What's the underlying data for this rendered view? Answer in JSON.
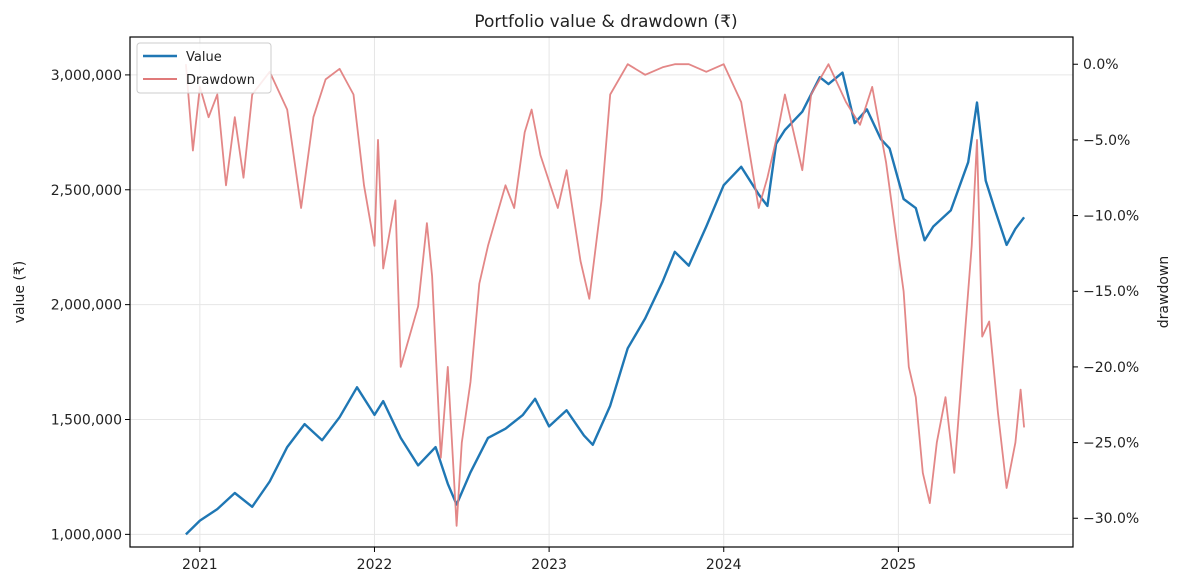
{
  "chart_data": {
    "type": "line",
    "title": "Portfolio value & drawdown (₹)",
    "xlabel": "",
    "ylabel_left": "value (₹)",
    "ylabel_right": "drawdown",
    "x_ticks": [
      "2021",
      "2022",
      "2023",
      "2024",
      "2025"
    ],
    "y_left_ticks": [
      "1,000,000",
      "1,500,000",
      "2,000,000",
      "2,500,000",
      "3,000,000"
    ],
    "y_right_ticks": [
      "0.0%",
      "−5.0%",
      "−10.0%",
      "−15.0%",
      "−20.0%",
      "−25.0%",
      "−30.0%"
    ],
    "ylim_left": [
      945000,
      3165000
    ],
    "ylim_right": [
      -31.9,
      1.8
    ],
    "xlim": [
      2020.6,
      2026.0
    ],
    "grid": true,
    "legend_position": "top-left",
    "series": [
      {
        "name": "Value",
        "axis": "left",
        "color": "#1f77b4",
        "points": [
          [
            2020.92,
            1000000
          ],
          [
            2021.0,
            1060000
          ],
          [
            2021.1,
            1110000
          ],
          [
            2021.2,
            1180000
          ],
          [
            2021.3,
            1120000
          ],
          [
            2021.4,
            1230000
          ],
          [
            2021.5,
            1380000
          ],
          [
            2021.6,
            1480000
          ],
          [
            2021.7,
            1410000
          ],
          [
            2021.8,
            1510000
          ],
          [
            2021.9,
            1640000
          ],
          [
            2022.0,
            1520000
          ],
          [
            2022.05,
            1580000
          ],
          [
            2022.15,
            1420000
          ],
          [
            2022.25,
            1300000
          ],
          [
            2022.35,
            1380000
          ],
          [
            2022.42,
            1220000
          ],
          [
            2022.47,
            1130000
          ],
          [
            2022.55,
            1270000
          ],
          [
            2022.65,
            1420000
          ],
          [
            2022.75,
            1460000
          ],
          [
            2022.85,
            1520000
          ],
          [
            2022.92,
            1590000
          ],
          [
            2023.0,
            1470000
          ],
          [
            2023.1,
            1540000
          ],
          [
            2023.2,
            1430000
          ],
          [
            2023.25,
            1390000
          ],
          [
            2023.35,
            1560000
          ],
          [
            2023.45,
            1810000
          ],
          [
            2023.55,
            1940000
          ],
          [
            2023.65,
            2100000
          ],
          [
            2023.72,
            2230000
          ],
          [
            2023.8,
            2170000
          ],
          [
            2023.9,
            2340000
          ],
          [
            2024.0,
            2520000
          ],
          [
            2024.1,
            2600000
          ],
          [
            2024.2,
            2480000
          ],
          [
            2024.25,
            2430000
          ],
          [
            2024.3,
            2700000
          ],
          [
            2024.35,
            2760000
          ],
          [
            2024.45,
            2840000
          ],
          [
            2024.55,
            2990000
          ],
          [
            2024.6,
            2960000
          ],
          [
            2024.68,
            3010000
          ],
          [
            2024.75,
            2790000
          ],
          [
            2024.82,
            2850000
          ],
          [
            2024.9,
            2720000
          ],
          [
            2024.95,
            2680000
          ],
          [
            2025.03,
            2460000
          ],
          [
            2025.1,
            2420000
          ],
          [
            2025.15,
            2280000
          ],
          [
            2025.2,
            2340000
          ],
          [
            2025.3,
            2410000
          ],
          [
            2025.4,
            2620000
          ],
          [
            2025.45,
            2880000
          ],
          [
            2025.5,
            2540000
          ],
          [
            2025.55,
            2420000
          ],
          [
            2025.62,
            2260000
          ],
          [
            2025.67,
            2330000
          ],
          [
            2025.72,
            2380000
          ]
        ]
      },
      {
        "name": "Drawdown",
        "axis": "right",
        "color": "#e07a7a",
        "points": [
          [
            2020.92,
            0
          ],
          [
            2020.96,
            -5.7
          ],
          [
            2021.0,
            -1.5
          ],
          [
            2021.05,
            -3.5
          ],
          [
            2021.1,
            -2.0
          ],
          [
            2021.15,
            -8.0
          ],
          [
            2021.2,
            -3.5
          ],
          [
            2021.25,
            -7.5
          ],
          [
            2021.3,
            -2.0
          ],
          [
            2021.4,
            -0.5
          ],
          [
            2021.5,
            -3.0
          ],
          [
            2021.58,
            -9.5
          ],
          [
            2021.65,
            -3.5
          ],
          [
            2021.72,
            -1.0
          ],
          [
            2021.8,
            -0.3
          ],
          [
            2021.88,
            -2.0
          ],
          [
            2021.94,
            -8.0
          ],
          [
            2022.0,
            -12.0
          ],
          [
            2022.02,
            -5.0
          ],
          [
            2022.05,
            -13.5
          ],
          [
            2022.12,
            -9.0
          ],
          [
            2022.15,
            -20.0
          ],
          [
            2022.2,
            -18.0
          ],
          [
            2022.25,
            -16.0
          ],
          [
            2022.3,
            -10.5
          ],
          [
            2022.33,
            -14.0
          ],
          [
            2022.38,
            -26.0
          ],
          [
            2022.42,
            -20.0
          ],
          [
            2022.47,
            -30.5
          ],
          [
            2022.5,
            -25.0
          ],
          [
            2022.55,
            -21.0
          ],
          [
            2022.6,
            -14.5
          ],
          [
            2022.65,
            -12.0
          ],
          [
            2022.7,
            -10.0
          ],
          [
            2022.75,
            -8.0
          ],
          [
            2022.8,
            -9.5
          ],
          [
            2022.86,
            -4.5
          ],
          [
            2022.9,
            -3.0
          ],
          [
            2022.95,
            -6.0
          ],
          [
            2023.05,
            -9.5
          ],
          [
            2023.1,
            -7.0
          ],
          [
            2023.18,
            -13.0
          ],
          [
            2023.23,
            -15.5
          ],
          [
            2023.3,
            -9.0
          ],
          [
            2023.35,
            -2.0
          ],
          [
            2023.45,
            0
          ],
          [
            2023.55,
            -0.7
          ],
          [
            2023.65,
            -0.2
          ],
          [
            2023.72,
            0
          ],
          [
            2023.8,
            0
          ],
          [
            2023.9,
            -0.5
          ],
          [
            2024.0,
            0
          ],
          [
            2024.1,
            -2.5
          ],
          [
            2024.2,
            -9.5
          ],
          [
            2024.25,
            -7.5
          ],
          [
            2024.3,
            -5.0
          ],
          [
            2024.35,
            -2.0
          ],
          [
            2024.45,
            -7.0
          ],
          [
            2024.5,
            -2.0
          ],
          [
            2024.6,
            0
          ],
          [
            2024.7,
            -2.5
          ],
          [
            2024.78,
            -4.0
          ],
          [
            2024.85,
            -1.5
          ],
          [
            2024.93,
            -6.5
          ],
          [
            2025.0,
            -12.5
          ],
          [
            2025.03,
            -15.0
          ],
          [
            2025.06,
            -20.0
          ],
          [
            2025.1,
            -22.0
          ],
          [
            2025.14,
            -27.0
          ],
          [
            2025.18,
            -29.0
          ],
          [
            2025.22,
            -25.0
          ],
          [
            2025.27,
            -22.0
          ],
          [
            2025.32,
            -27.0
          ],
          [
            2025.38,
            -18.0
          ],
          [
            2025.42,
            -12.0
          ],
          [
            2025.45,
            -5.0
          ],
          [
            2025.48,
            -18.0
          ],
          [
            2025.52,
            -17.0
          ],
          [
            2025.57,
            -23.0
          ],
          [
            2025.62,
            -28.0
          ],
          [
            2025.67,
            -25.0
          ],
          [
            2025.7,
            -21.5
          ],
          [
            2025.72,
            -24.0
          ]
        ]
      }
    ]
  }
}
